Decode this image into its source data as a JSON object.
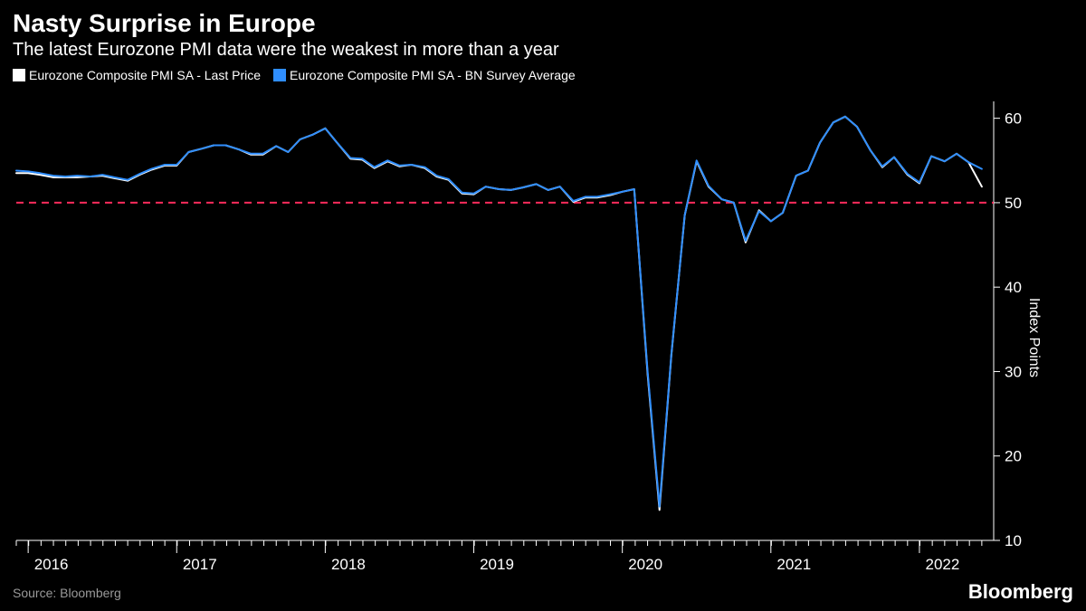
{
  "title": "Nasty Surprise in Europe",
  "subtitle": "The latest Eurozone PMI data were the weakest in more than a year",
  "source": "Source: Bloomberg",
  "brand": "Bloomberg",
  "y_axis_label": "Index Points",
  "legend": [
    {
      "label": "Eurozone Composite PMI SA - Last Price",
      "color": "#ffffff"
    },
    {
      "label": "Eurozone Composite PMI SA - BN Survey Average",
      "color": "#2f8eff"
    }
  ],
  "chart": {
    "type": "line",
    "background_color": "#000000",
    "axis_color": "#ffffff",
    "tick_color": "#ffffff",
    "tick_fontsize": 17,
    "reference_line": {
      "value": 50,
      "color": "#ff2b5b",
      "dash": "8,6",
      "width": 2
    },
    "ylim": [
      10,
      62
    ],
    "yticks": [
      10,
      20,
      30,
      40,
      50,
      60
    ],
    "x_years": [
      2016,
      2017,
      2018,
      2019,
      2020,
      2021,
      2022
    ],
    "x_end": 2022.5,
    "series": [
      {
        "name": "last-price",
        "color": "#ffffff",
        "width": 2,
        "points": [
          [
            2015.92,
            53.5
          ],
          [
            2016.0,
            53.5
          ],
          [
            2016.08,
            53.3
          ],
          [
            2016.17,
            53.0
          ],
          [
            2016.25,
            53.0
          ],
          [
            2016.33,
            53.0
          ],
          [
            2016.42,
            53.1
          ],
          [
            2016.5,
            53.2
          ],
          [
            2016.58,
            52.9
          ],
          [
            2016.67,
            52.6
          ],
          [
            2016.75,
            53.3
          ],
          [
            2016.83,
            53.9
          ],
          [
            2016.92,
            54.4
          ],
          [
            2017.0,
            54.4
          ],
          [
            2017.08,
            56.0
          ],
          [
            2017.17,
            56.4
          ],
          [
            2017.25,
            56.8
          ],
          [
            2017.33,
            56.8
          ],
          [
            2017.42,
            56.3
          ],
          [
            2017.5,
            55.7
          ],
          [
            2017.58,
            55.7
          ],
          [
            2017.67,
            56.7
          ],
          [
            2017.75,
            56.0
          ],
          [
            2017.83,
            57.5
          ],
          [
            2017.92,
            58.1
          ],
          [
            2018.0,
            58.8
          ],
          [
            2018.08,
            57.1
          ],
          [
            2018.17,
            55.2
          ],
          [
            2018.25,
            55.1
          ],
          [
            2018.33,
            54.1
          ],
          [
            2018.42,
            54.9
          ],
          [
            2018.5,
            54.3
          ],
          [
            2018.58,
            54.5
          ],
          [
            2018.67,
            54.1
          ],
          [
            2018.75,
            53.1
          ],
          [
            2018.83,
            52.7
          ],
          [
            2018.92,
            51.1
          ],
          [
            2019.0,
            51.0
          ],
          [
            2019.08,
            51.9
          ],
          [
            2019.17,
            51.6
          ],
          [
            2019.25,
            51.5
          ],
          [
            2019.33,
            51.8
          ],
          [
            2019.42,
            52.2
          ],
          [
            2019.5,
            51.5
          ],
          [
            2019.58,
            51.9
          ],
          [
            2019.67,
            50.1
          ],
          [
            2019.75,
            50.6
          ],
          [
            2019.83,
            50.6
          ],
          [
            2019.92,
            50.9
          ],
          [
            2020.0,
            51.3
          ],
          [
            2020.08,
            51.6
          ],
          [
            2020.17,
            29.7
          ],
          [
            2020.25,
            13.6
          ],
          [
            2020.33,
            31.9
          ],
          [
            2020.42,
            48.5
          ],
          [
            2020.5,
            54.9
          ],
          [
            2020.58,
            51.9
          ],
          [
            2020.67,
            50.4
          ],
          [
            2020.75,
            50.0
          ],
          [
            2020.83,
            45.3
          ],
          [
            2020.92,
            49.1
          ],
          [
            2021.0,
            47.8
          ],
          [
            2021.08,
            48.8
          ],
          [
            2021.17,
            53.2
          ],
          [
            2021.25,
            53.8
          ],
          [
            2021.33,
            57.1
          ],
          [
            2021.42,
            59.5
          ],
          [
            2021.5,
            60.2
          ],
          [
            2021.58,
            59.0
          ],
          [
            2021.67,
            56.2
          ],
          [
            2021.75,
            54.2
          ],
          [
            2021.83,
            55.4
          ],
          [
            2021.92,
            53.3
          ],
          [
            2022.0,
            52.3
          ],
          [
            2022.08,
            55.5
          ],
          [
            2022.17,
            54.9
          ],
          [
            2022.25,
            55.8
          ],
          [
            2022.33,
            54.8
          ],
          [
            2022.42,
            51.9
          ]
        ]
      },
      {
        "name": "survey-average",
        "color": "#2f8eff",
        "width": 2,
        "points": [
          [
            2015.92,
            53.8
          ],
          [
            2016.0,
            53.7
          ],
          [
            2016.08,
            53.5
          ],
          [
            2016.17,
            53.2
          ],
          [
            2016.25,
            53.1
          ],
          [
            2016.33,
            53.2
          ],
          [
            2016.42,
            53.1
          ],
          [
            2016.5,
            53.3
          ],
          [
            2016.58,
            53.0
          ],
          [
            2016.67,
            52.7
          ],
          [
            2016.75,
            53.4
          ],
          [
            2016.83,
            54.0
          ],
          [
            2016.92,
            54.5
          ],
          [
            2017.0,
            54.5
          ],
          [
            2017.08,
            56.0
          ],
          [
            2017.17,
            56.4
          ],
          [
            2017.25,
            56.8
          ],
          [
            2017.33,
            56.8
          ],
          [
            2017.42,
            56.3
          ],
          [
            2017.5,
            55.8
          ],
          [
            2017.58,
            55.8
          ],
          [
            2017.67,
            56.7
          ],
          [
            2017.75,
            56.0
          ],
          [
            2017.83,
            57.5
          ],
          [
            2017.92,
            58.1
          ],
          [
            2018.0,
            58.8
          ],
          [
            2018.08,
            57.1
          ],
          [
            2018.17,
            55.3
          ],
          [
            2018.25,
            55.2
          ],
          [
            2018.33,
            54.2
          ],
          [
            2018.42,
            55.0
          ],
          [
            2018.5,
            54.4
          ],
          [
            2018.58,
            54.5
          ],
          [
            2018.67,
            54.2
          ],
          [
            2018.75,
            53.2
          ],
          [
            2018.83,
            52.8
          ],
          [
            2018.92,
            51.2
          ],
          [
            2019.0,
            51.1
          ],
          [
            2019.08,
            51.9
          ],
          [
            2019.17,
            51.6
          ],
          [
            2019.25,
            51.5
          ],
          [
            2019.33,
            51.8
          ],
          [
            2019.42,
            52.2
          ],
          [
            2019.5,
            51.5
          ],
          [
            2019.58,
            51.9
          ],
          [
            2019.67,
            50.2
          ],
          [
            2019.75,
            50.7
          ],
          [
            2019.83,
            50.7
          ],
          [
            2019.92,
            51.0
          ],
          [
            2020.0,
            51.3
          ],
          [
            2020.08,
            51.6
          ],
          [
            2020.17,
            30.0
          ],
          [
            2020.25,
            14.0
          ],
          [
            2020.33,
            32.0
          ],
          [
            2020.42,
            48.5
          ],
          [
            2020.5,
            55.0
          ],
          [
            2020.58,
            52.0
          ],
          [
            2020.67,
            50.4
          ],
          [
            2020.75,
            50.0
          ],
          [
            2020.83,
            45.5
          ],
          [
            2020.92,
            49.0
          ],
          [
            2021.0,
            47.8
          ],
          [
            2021.08,
            48.8
          ],
          [
            2021.17,
            53.2
          ],
          [
            2021.25,
            53.8
          ],
          [
            2021.33,
            57.1
          ],
          [
            2021.42,
            59.5
          ],
          [
            2021.5,
            60.2
          ],
          [
            2021.58,
            59.0
          ],
          [
            2021.67,
            56.2
          ],
          [
            2021.75,
            54.3
          ],
          [
            2021.83,
            55.4
          ],
          [
            2021.92,
            53.4
          ],
          [
            2022.0,
            52.4
          ],
          [
            2022.08,
            55.5
          ],
          [
            2022.17,
            54.9
          ],
          [
            2022.25,
            55.8
          ],
          [
            2022.33,
            54.8
          ],
          [
            2022.42,
            54.0
          ]
        ]
      }
    ]
  }
}
